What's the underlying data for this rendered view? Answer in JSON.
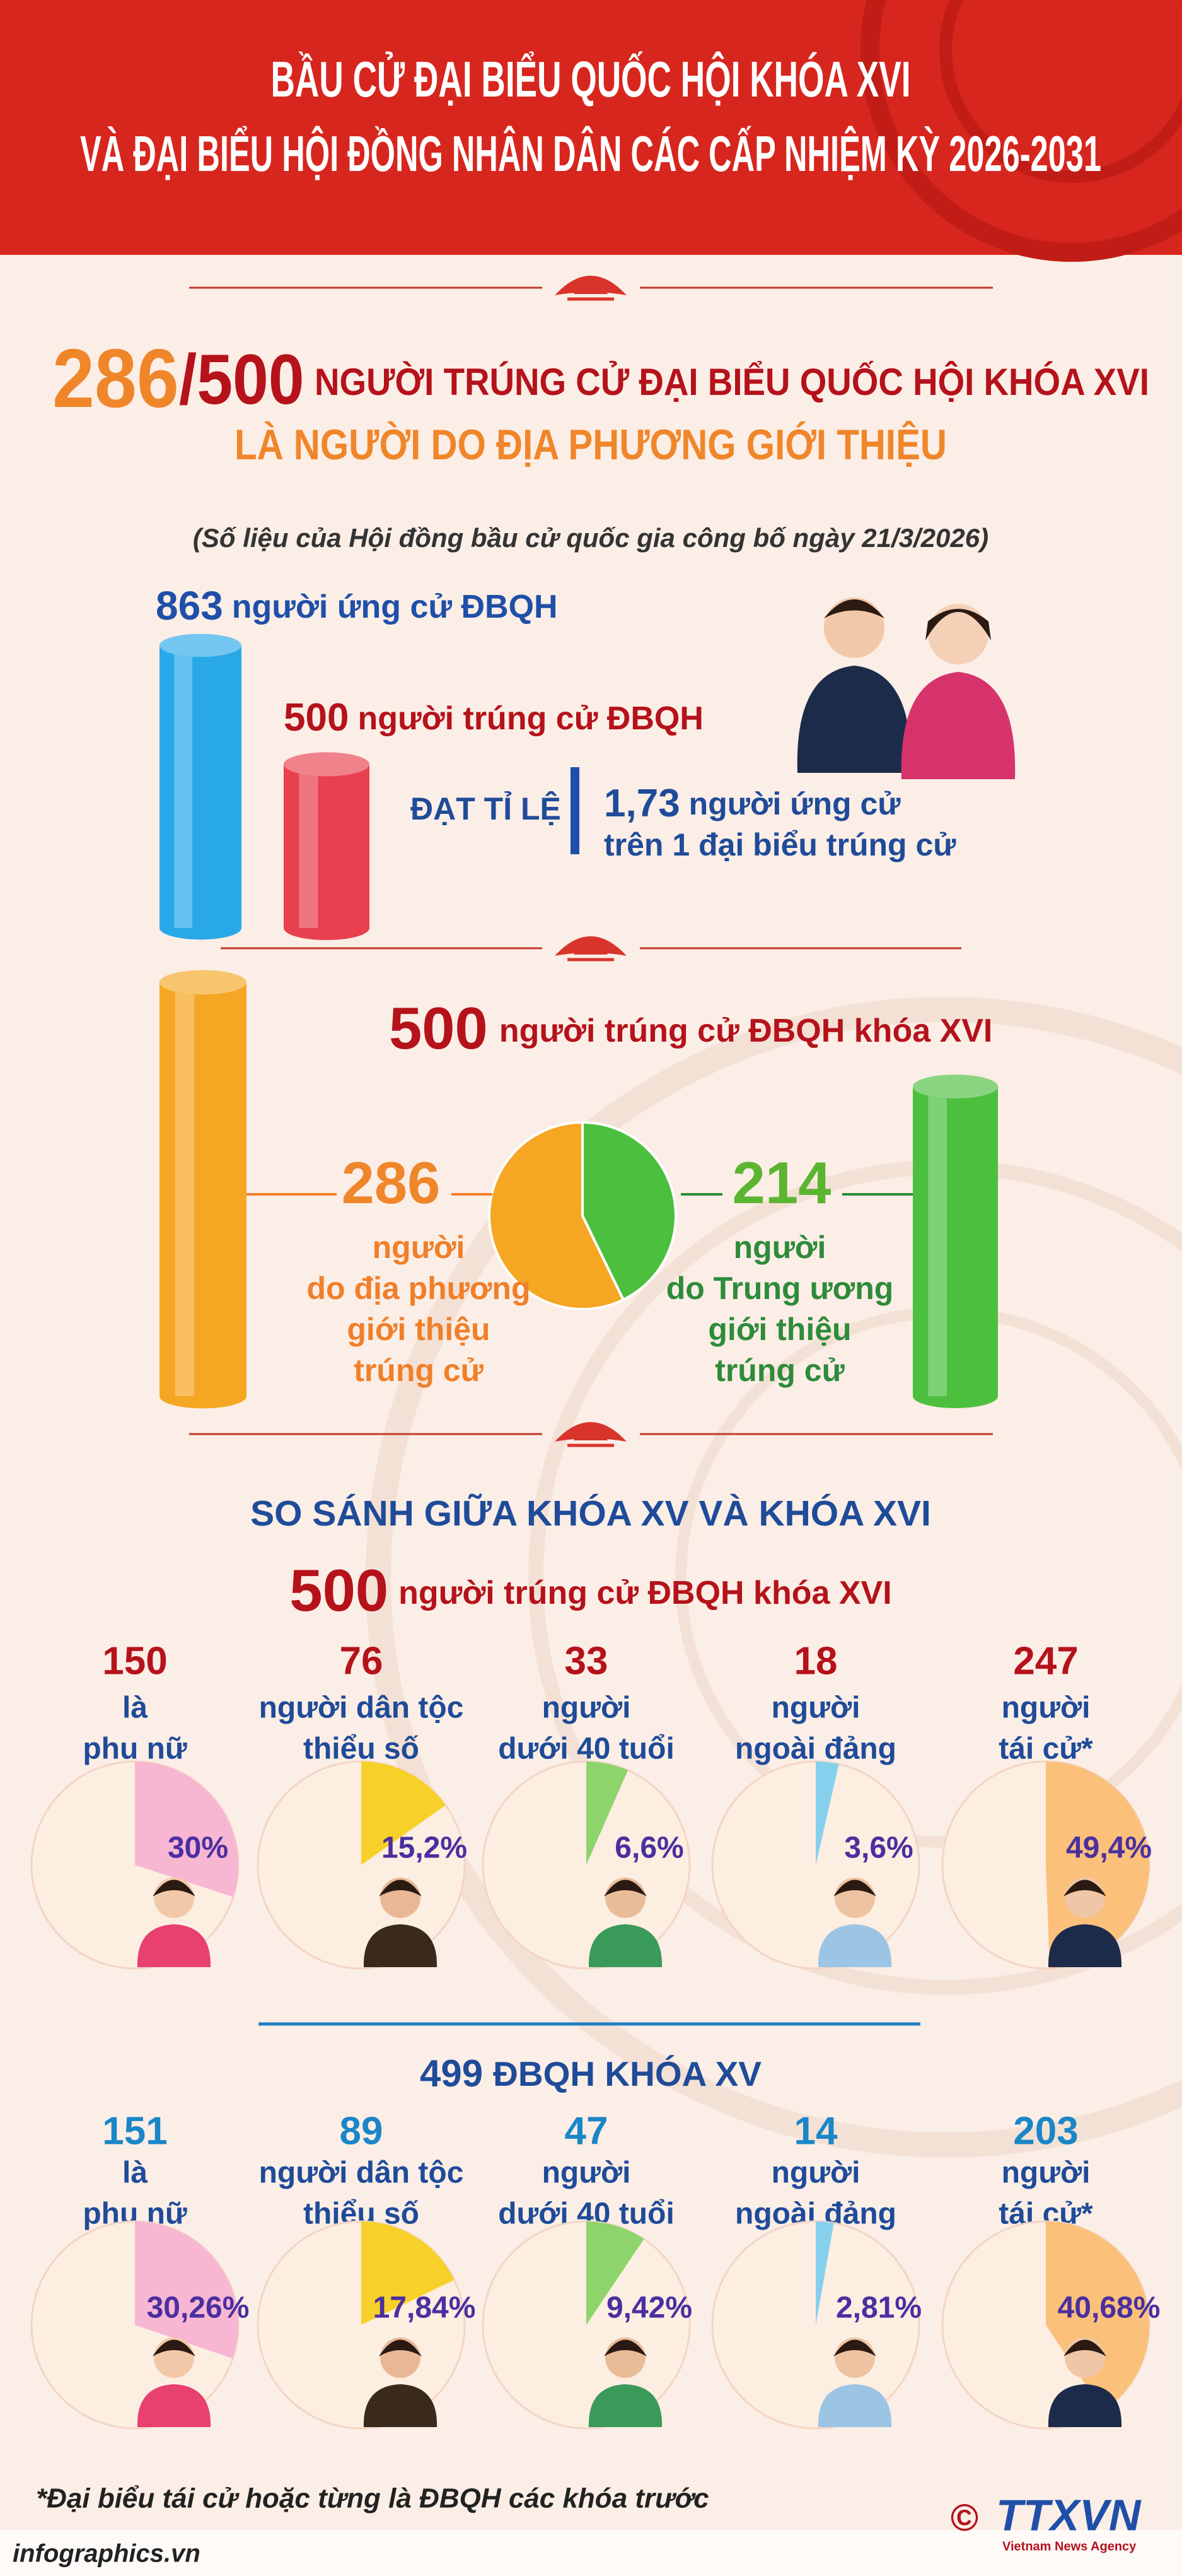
{
  "header": {
    "title_line1": "BẦU CỬ ĐẠI BIỂU QUỐC HỘI KHÓA XVI",
    "title_line2": "VÀ ĐẠI BIỂU HỘI ĐỒNG NHÂN DÂN CÁC CẤP NHIỆM KỲ 2026-2031"
  },
  "headline": {
    "number": "286",
    "total": "/500",
    "text": "NGƯỜI TRÚNG CỬ ĐẠI BIỂU QUỐC HỘI KHÓA XVI",
    "line2": "LÀ NGƯỜI DO ĐỊA PHƯƠNG GIỚI THIỆU",
    "source": "(Số liệu của Hội đồng bầu cử quốc gia công bố ngày 21/3/2026)"
  },
  "candidates": {
    "bars": [
      {
        "value": 863,
        "text": "người ứng cử ĐBQH",
        "color": "#29a8e8"
      },
      {
        "value": 500,
        "text": "người trúng cử ĐBQH",
        "color": "#e8404e"
      }
    ],
    "ratio_label": "ĐẠT TỈ LỆ",
    "ratio": {
      "value": 1.73,
      "label": "1,73"
    },
    "ratio_text1": "người ứng cử",
    "ratio_text2": "trên 1 đại biểu trúng cử"
  },
  "split": {
    "total": 500,
    "total_text": "người trúng cử ĐBQH khóa XVI",
    "parts": [
      {
        "value": 286,
        "lines": [
          "người",
          "do địa phương",
          "giới thiệu",
          "trúng cử"
        ],
        "color": "#f5a623",
        "text_color": "#f07f2a"
      },
      {
        "value": 214,
        "lines": [
          "người",
          "do Trung ương",
          "giới thiệu",
          "trúng cử"
        ],
        "color": "#4cbf3f",
        "text_color": "#2e8b3a"
      }
    ]
  },
  "comparison": {
    "title": "SO SÁNH GIỮA KHÓA XV VÀ KHÓA XVI",
    "groups": [
      {
        "count": 500,
        "heading": "người trúng cử ĐBQH khóa XVI",
        "count_color": "#b5121b",
        "heading_color": "#b5121b",
        "items": [
          {
            "value": 150,
            "lines": [
              "là",
              "phụ nữ"
            ],
            "share": {
              "value": 30,
              "label": "30%"
            },
            "color": "#f7b6d2"
          },
          {
            "value": 76,
            "lines": [
              "người dân tộc",
              "thiểu số"
            ],
            "share": {
              "value": 15.2,
              "label": "15,2%"
            },
            "color": "#f8d02a"
          },
          {
            "value": 33,
            "lines": [
              "người",
              "dưới 40 tuổi"
            ],
            "share": {
              "value": 6.6,
              "label": "6,6%"
            },
            "color": "#8ed46c"
          },
          {
            "value": 18,
            "lines": [
              "người",
              "ngoài đảng"
            ],
            "share": {
              "value": 3.6,
              "label": "3,6%"
            },
            "color": "#86d0ee"
          },
          {
            "value": 247,
            "lines": [
              "người",
              "tái cử*"
            ],
            "share": {
              "value": 49.4,
              "label": "49,4%"
            },
            "color": "#fbc07a"
          }
        ]
      },
      {
        "count": 499,
        "heading": "ĐBQH KHÓA XV",
        "count_color": "#1f4b99",
        "heading_color": "#1f4b99",
        "items": [
          {
            "value": 151,
            "lines": [
              "là",
              "phụ nữ"
            ],
            "share": {
              "value": 30.26,
              "label": "30,26%"
            },
            "color": "#f7b6d2"
          },
          {
            "value": 89,
            "lines": [
              "người dân tộc",
              "thiểu số"
            ],
            "share": {
              "value": 17.84,
              "label": "17,84%"
            },
            "color": "#f8d02a"
          },
          {
            "value": 47,
            "lines": [
              "người",
              "dưới 40 tuổi"
            ],
            "share": {
              "value": 9.42,
              "label": "9,42%"
            },
            "color": "#8ed46c"
          },
          {
            "value": 14,
            "lines": [
              "người",
              "ngoài đảng"
            ],
            "share": {
              "value": 2.81,
              "label": "2,81%"
            },
            "color": "#86d0ee"
          },
          {
            "value": 203,
            "lines": [
              "người",
              "tái cử*"
            ],
            "share": {
              "value": 40.68,
              "label": "40,68%"
            },
            "color": "#fbc07a"
          }
        ]
      }
    ]
  },
  "footnote": "*Đại biểu tái cử hoặc từng là ĐBQH các khóa trước",
  "credit": "infographics.vn",
  "agency": {
    "copyright": "©",
    "name": "TTXVN",
    "sub": "Vietnam News Agency"
  }
}
